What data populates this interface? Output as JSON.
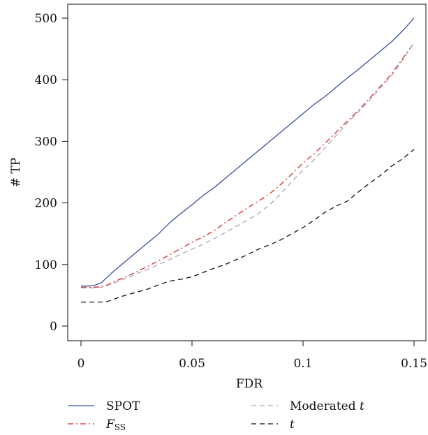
{
  "chart_data": {
    "type": "line",
    "xlabel": "FDR",
    "ylabel": "# TP",
    "xlim": [
      0,
      0.15
    ],
    "ylim": [
      0,
      500
    ],
    "xticks": [
      0,
      0.05,
      0.1,
      0.15
    ],
    "xtick_labels": [
      "0",
      "0.05",
      "0.1",
      "0.15"
    ],
    "yticks": [
      0,
      100,
      200,
      300,
      400,
      500
    ],
    "ytick_labels": [
      "0",
      "100",
      "200",
      "300",
      "400",
      "500"
    ],
    "grid": false,
    "legend_position": "bottom",
    "series": [
      {
        "name": "SPOT",
        "color": "#3b4fa0",
        "dash": "solid",
        "x": [
          0,
          0.003,
          0.006,
          0.009,
          0.012,
          0.015,
          0.02,
          0.025,
          0.03,
          0.035,
          0.04,
          0.045,
          0.05,
          0.055,
          0.06,
          0.065,
          0.07,
          0.075,
          0.08,
          0.085,
          0.09,
          0.095,
          0.1,
          0.105,
          0.11,
          0.115,
          0.12,
          0.125,
          0.13,
          0.135,
          0.14,
          0.145,
          0.15
        ],
        "y": [
          65,
          65,
          66,
          70,
          80,
          90,
          105,
          120,
          135,
          150,
          168,
          183,
          197,
          212,
          225,
          240,
          255,
          270,
          285,
          300,
          315,
          330,
          345,
          360,
          373,
          388,
          403,
          417,
          432,
          447,
          462,
          480,
          500
        ]
      },
      {
        "name": "F",
        "name_sub": "SS",
        "color": "#d92a2a",
        "dash": "dashdot",
        "x": [
          0,
          0.003,
          0.006,
          0.009,
          0.012,
          0.015,
          0.02,
          0.025,
          0.03,
          0.035,
          0.04,
          0.045,
          0.05,
          0.055,
          0.06,
          0.065,
          0.07,
          0.075,
          0.08,
          0.085,
          0.09,
          0.095,
          0.1,
          0.105,
          0.11,
          0.115,
          0.12,
          0.125,
          0.13,
          0.135,
          0.14,
          0.145,
          0.15
        ],
        "y": [
          63,
          63,
          63,
          64,
          67,
          72,
          80,
          88,
          97,
          106,
          116,
          126,
          136,
          145,
          155,
          168,
          180,
          192,
          203,
          215,
          230,
          247,
          265,
          280,
          297,
          315,
          333,
          350,
          370,
          390,
          410,
          435,
          460
        ]
      },
      {
        "name": "Moderated t",
        "color": "#a8a8b0",
        "dash": "dashed",
        "x": [
          0,
          0.003,
          0.006,
          0.009,
          0.012,
          0.015,
          0.02,
          0.025,
          0.03,
          0.035,
          0.04,
          0.045,
          0.05,
          0.055,
          0.06,
          0.065,
          0.07,
          0.075,
          0.08,
          0.085,
          0.09,
          0.095,
          0.1,
          0.105,
          0.11,
          0.115,
          0.12,
          0.125,
          0.13,
          0.135,
          0.14,
          0.145,
          0.15
        ],
        "y": [
          62,
          62,
          62,
          63,
          66,
          70,
          77,
          85,
          92,
          100,
          108,
          117,
          125,
          133,
          142,
          152,
          162,
          172,
          183,
          197,
          215,
          235,
          253,
          270,
          290,
          310,
          330,
          348,
          367,
          387,
          407,
          433,
          460
        ]
      },
      {
        "name": "t",
        "color": "#111111",
        "dash": "dashed",
        "x": [
          0,
          0.003,
          0.006,
          0.009,
          0.012,
          0.015,
          0.02,
          0.025,
          0.03,
          0.035,
          0.04,
          0.045,
          0.05,
          0.055,
          0.06,
          0.065,
          0.07,
          0.075,
          0.08,
          0.085,
          0.09,
          0.095,
          0.1,
          0.105,
          0.11,
          0.115,
          0.12,
          0.125,
          0.13,
          0.135,
          0.14,
          0.145,
          0.15
        ],
        "y": [
          39,
          39,
          39,
          39,
          40,
          44,
          50,
          55,
          60,
          67,
          73,
          76,
          80,
          87,
          94,
          100,
          108,
          116,
          125,
          132,
          140,
          150,
          160,
          172,
          185,
          195,
          203,
          218,
          232,
          245,
          260,
          272,
          287
        ]
      }
    ]
  }
}
